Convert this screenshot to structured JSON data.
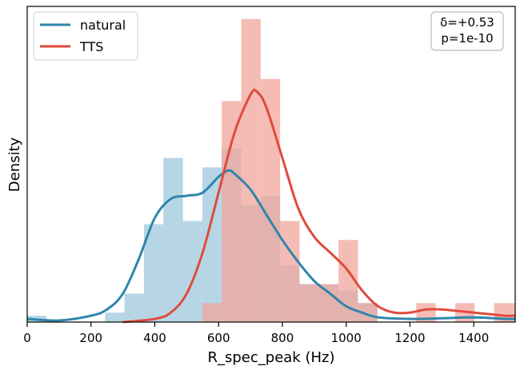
{
  "chart_data": {
    "type": "histogram+kde",
    "xlabel": "R_spec_peak (Hz)",
    "ylabel": "Density",
    "xlim": [
      0,
      1530
    ],
    "ylim": [
      0,
      1.0
    ],
    "x_ticks": [
      0,
      200,
      400,
      600,
      800,
      1000,
      1200,
      1400
    ],
    "y_ticks_shown": false,
    "legend": {
      "placement": "top-left",
      "entries": [
        "natural",
        "TTS"
      ]
    },
    "annotation": {
      "lines": [
        "δ=+0.53",
        "p=1e-10"
      ],
      "placement": "top-right"
    },
    "series": [
      {
        "name": "natural",
        "color": "#2e86ab",
        "hist_color": "#9fc8dc",
        "bins": [
          {
            "x0": 0,
            "x1": 61,
            "density": 0.02
          },
          {
            "x0": 61,
            "x1": 122,
            "density": 0.0
          },
          {
            "x0": 122,
            "x1": 183,
            "density": 0.0
          },
          {
            "x0": 183,
            "x1": 244,
            "density": 0.0
          },
          {
            "x0": 244,
            "x1": 305,
            "density": 0.03
          },
          {
            "x0": 305,
            "x1": 366,
            "density": 0.09
          },
          {
            "x0": 366,
            "x1": 427,
            "density": 0.31
          },
          {
            "x0": 427,
            "x1": 488,
            "density": 0.52
          },
          {
            "x0": 488,
            "x1": 549,
            "density": 0.32
          },
          {
            "x0": 549,
            "x1": 610,
            "density": 0.49
          },
          {
            "x0": 610,
            "x1": 671,
            "density": 0.55
          },
          {
            "x0": 671,
            "x1": 732,
            "density": 0.37
          },
          {
            "x0": 732,
            "x1": 793,
            "density": 0.4
          },
          {
            "x0": 793,
            "x1": 854,
            "density": 0.18
          },
          {
            "x0": 854,
            "x1": 915,
            "density": 0.12
          },
          {
            "x0": 915,
            "x1": 976,
            "density": 0.12
          },
          {
            "x0": 976,
            "x1": 1037,
            "density": 0.1
          },
          {
            "x0": 1037,
            "x1": 1098,
            "density": 0.06
          }
        ],
        "kde": [
          [
            0,
            0.01
          ],
          [
            100,
            0.005
          ],
          [
            200,
            0.02
          ],
          [
            250,
            0.04
          ],
          [
            300,
            0.09
          ],
          [
            350,
            0.2
          ],
          [
            400,
            0.33
          ],
          [
            450,
            0.39
          ],
          [
            500,
            0.4
          ],
          [
            550,
            0.41
          ],
          [
            600,
            0.46
          ],
          [
            630,
            0.48
          ],
          [
            650,
            0.47
          ],
          [
            700,
            0.42
          ],
          [
            750,
            0.34
          ],
          [
            800,
            0.26
          ],
          [
            850,
            0.19
          ],
          [
            900,
            0.13
          ],
          [
            950,
            0.09
          ],
          [
            1000,
            0.05
          ],
          [
            1050,
            0.03
          ],
          [
            1100,
            0.015
          ],
          [
            1200,
            0.01
          ],
          [
            1300,
            0.012
          ],
          [
            1400,
            0.015
          ],
          [
            1500,
            0.01
          ],
          [
            1530,
            0.01
          ]
        ]
      },
      {
        "name": "TTS",
        "color": "#e04b3c",
        "hist_color": "#f2a59c",
        "bins": [
          {
            "x0": 549,
            "x1": 610,
            "density": 0.06
          },
          {
            "x0": 610,
            "x1": 671,
            "density": 0.7
          },
          {
            "x0": 671,
            "x1": 732,
            "density": 0.96
          },
          {
            "x0": 732,
            "x1": 793,
            "density": 0.77
          },
          {
            "x0": 793,
            "x1": 854,
            "density": 0.32
          },
          {
            "x0": 854,
            "x1": 915,
            "density": 0.12
          },
          {
            "x0": 915,
            "x1": 976,
            "density": 0.12
          },
          {
            "x0": 976,
            "x1": 1037,
            "density": 0.26
          },
          {
            "x0": 1037,
            "x1": 1098,
            "density": 0.06
          },
          {
            "x0": 1220,
            "x1": 1281,
            "density": 0.06
          },
          {
            "x0": 1342,
            "x1": 1403,
            "density": 0.06
          },
          {
            "x0": 1464,
            "x1": 1530,
            "density": 0.06
          }
        ],
        "kde": [
          [
            300,
            0.0
          ],
          [
            400,
            0.01
          ],
          [
            450,
            0.03
          ],
          [
            500,
            0.09
          ],
          [
            550,
            0.22
          ],
          [
            600,
            0.41
          ],
          [
            650,
            0.6
          ],
          [
            700,
            0.72
          ],
          [
            720,
            0.73
          ],
          [
            750,
            0.68
          ],
          [
            800,
            0.52
          ],
          [
            850,
            0.36
          ],
          [
            900,
            0.27
          ],
          [
            950,
            0.22
          ],
          [
            1000,
            0.17
          ],
          [
            1050,
            0.1
          ],
          [
            1100,
            0.05
          ],
          [
            1150,
            0.03
          ],
          [
            1200,
            0.03
          ],
          [
            1250,
            0.04
          ],
          [
            1300,
            0.04
          ],
          [
            1350,
            0.035
          ],
          [
            1400,
            0.03
          ],
          [
            1450,
            0.025
          ],
          [
            1500,
            0.02
          ],
          [
            1530,
            0.02
          ]
        ]
      }
    ]
  }
}
